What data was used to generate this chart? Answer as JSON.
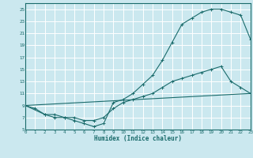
{
  "xlabel": "Humidex (Indice chaleur)",
  "bg_color": "#cbe8ef",
  "line_color": "#1a6b6b",
  "grid_color": "#ffffff",
  "xlim": [
    0,
    23
  ],
  "ylim": [
    5,
    26
  ],
  "yticks": [
    5,
    7,
    9,
    11,
    13,
    15,
    17,
    19,
    21,
    23,
    25
  ],
  "xticks": [
    0,
    1,
    2,
    3,
    4,
    5,
    6,
    7,
    8,
    9,
    10,
    11,
    12,
    13,
    14,
    15,
    16,
    17,
    18,
    19,
    20,
    21,
    22,
    23
  ],
  "line1_x": [
    0,
    1,
    2,
    3,
    4,
    5,
    6,
    7,
    8,
    9,
    10,
    11,
    12,
    13,
    14,
    15,
    16,
    17,
    18,
    19,
    20,
    21,
    22,
    23
  ],
  "line1_y": [
    9.0,
    8.5,
    7.5,
    7.0,
    7.0,
    6.5,
    6.0,
    5.5,
    6.0,
    9.5,
    10.0,
    11.0,
    12.5,
    14.0,
    16.5,
    19.5,
    22.5,
    23.5,
    24.5,
    25.0,
    25.0,
    24.5,
    24.0,
    20.0
  ],
  "line2_x": [
    0,
    2,
    3,
    4,
    5,
    6,
    7,
    8,
    9,
    10,
    11,
    12,
    13,
    14,
    15,
    16,
    17,
    18,
    19,
    20,
    21,
    22,
    23
  ],
  "line2_y": [
    9.0,
    7.5,
    7.5,
    7.0,
    7.0,
    6.5,
    6.5,
    7.0,
    8.5,
    9.5,
    10.0,
    10.5,
    11.0,
    12.0,
    13.0,
    13.5,
    14.0,
    14.5,
    15.0,
    15.5,
    13.0,
    12.0,
    11.0
  ],
  "line3_x": [
    0,
    23
  ],
  "line3_y": [
    9.0,
    11.0
  ]
}
